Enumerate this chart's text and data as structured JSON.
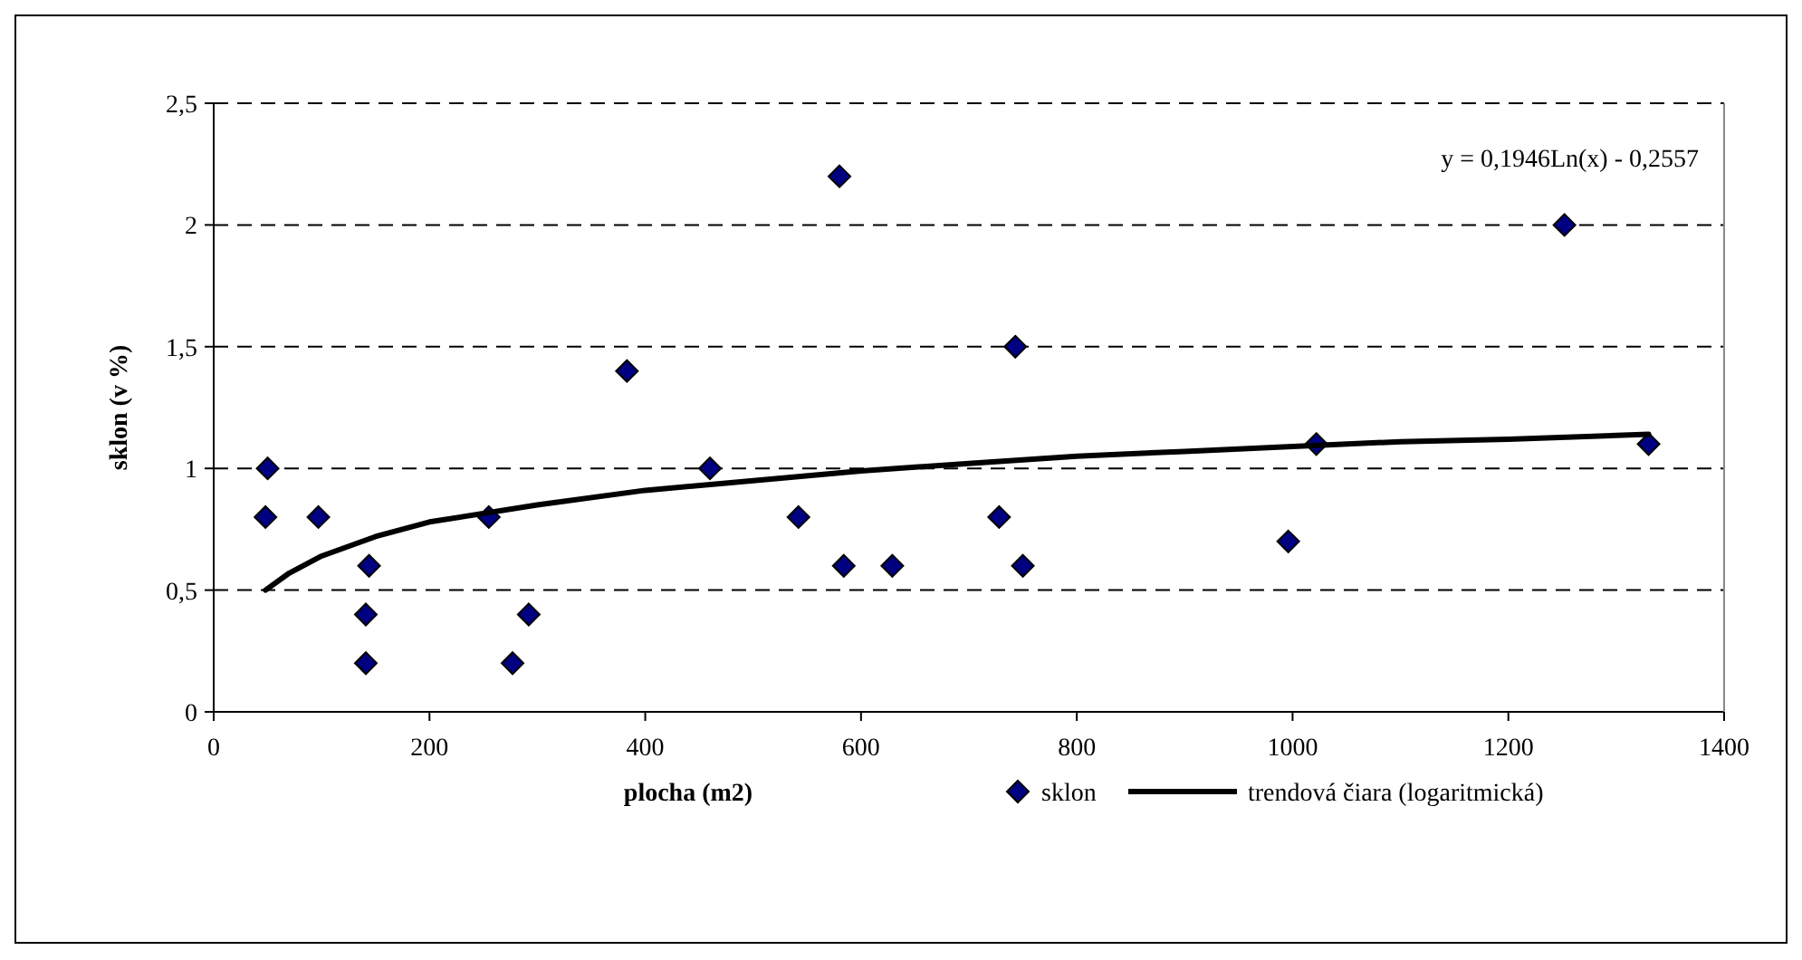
{
  "chart_data": {
    "type": "scatter",
    "xlabel": "plocha (m2)",
    "ylabel": "sklon (v %)",
    "xlim": [
      0,
      1400
    ],
    "xticks": [
      0,
      200,
      400,
      600,
      800,
      1000,
      1200,
      1400
    ],
    "ylim": [
      0,
      2.5
    ],
    "yticks": [
      {
        "value": 0,
        "label": "0"
      },
      {
        "value": 0.5,
        "label": "0,5"
      },
      {
        "value": 1,
        "label": "1"
      },
      {
        "value": 1.5,
        "label": "1,5"
      },
      {
        "value": 2,
        "label": "2"
      },
      {
        "value": 2.5,
        "label": "2,5"
      }
    ],
    "grid": "y",
    "legend": "bottom",
    "annotations": [
      "y = 0,1946Ln(x) - 0,2557"
    ],
    "series": [
      {
        "name": "sklon",
        "color": "#000080",
        "marker": "diamond",
        "x": [
          50,
          48,
          97,
          144,
          141,
          141,
          255,
          277,
          292,
          383,
          460,
          542,
          580,
          584,
          629,
          728,
          743,
          750,
          996,
          1022,
          1252,
          1330
        ],
        "values": [
          1.0,
          0.8,
          0.8,
          0.6,
          0.4,
          0.2,
          0.8,
          0.2,
          0.4,
          1.4,
          1.0,
          0.8,
          2.2,
          0.6,
          0.6,
          0.8,
          1.5,
          0.6,
          0.7,
          1.1,
          2.0,
          1.1
        ]
      },
      {
        "name": "trendová čiara (logaritmická)",
        "type": "line",
        "color": "#000000",
        "marker": "none",
        "line_style": "solid",
        "x": [
          48,
          70,
          100,
          150,
          200,
          300,
          400,
          500,
          600,
          700,
          800,
          900,
          1000,
          1100,
          1200,
          1330
        ],
        "values": [
          0.5,
          0.57,
          0.64,
          0.72,
          0.78,
          0.85,
          0.91,
          0.95,
          0.99,
          1.02,
          1.05,
          1.07,
          1.09,
          1.11,
          1.12,
          1.14
        ]
      }
    ]
  }
}
